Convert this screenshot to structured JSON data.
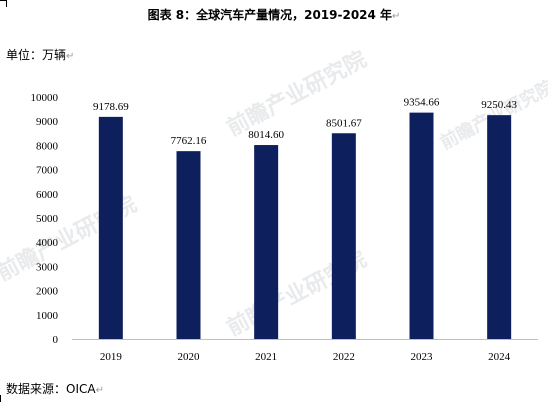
{
  "header": {
    "title": "图表  8：全球汽车产量情况，2019-2024 年",
    "title_mark": "↵"
  },
  "unit": {
    "label": "单位：万辆",
    "mark": "↵"
  },
  "source": {
    "label": "数据来源：OICA",
    "mark": "↵"
  },
  "watermark": {
    "text": "前瞻产业研究院"
  },
  "colors": {
    "bar": "#0d1f5c",
    "axis": "#bfbfbf"
  },
  "chart_data": {
    "type": "bar",
    "categories": [
      "2019",
      "2020",
      "2021",
      "2022",
      "2023",
      "2024"
    ],
    "values": [
      9178.69,
      7762.16,
      8014.6,
      8501.67,
      9354.66,
      9250.43
    ],
    "value_labels": [
      "9178.69",
      "7762.16",
      "8014.60",
      "8501.67",
      "9354.66",
      "9250.43"
    ],
    "title": "图表  8：全球汽车产量情况，2019-2024 年",
    "xlabel": "",
    "ylabel": "单位：万辆",
    "ylim": [
      0,
      10000
    ],
    "yticks": [
      "0",
      "1000",
      "2000",
      "3000",
      "4000",
      "5000",
      "6000",
      "7000",
      "8000",
      "9000",
      "10000"
    ],
    "grid": false,
    "legend": "none"
  }
}
